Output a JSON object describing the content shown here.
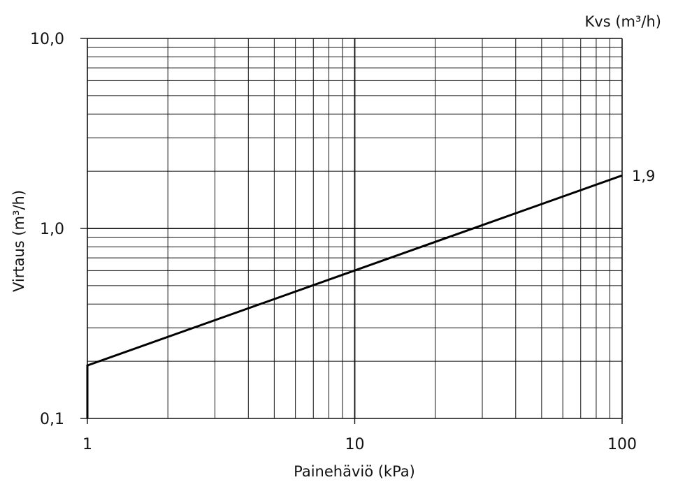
{
  "chart_data": {
    "type": "line",
    "title": "",
    "xlabel": "Painehäviö (kPa)",
    "ylabel": "Virtaus (m³/h)",
    "secondary_label": "Kvs (m³/h)",
    "x_scale": "log",
    "y_scale": "log",
    "xlim": [
      1,
      100
    ],
    "ylim": [
      0.1,
      10
    ],
    "x_ticks": [
      {
        "value": 1,
        "label": "1"
      },
      {
        "value": 10,
        "label": "10"
      },
      {
        "value": 100,
        "label": "100"
      }
    ],
    "y_ticks": [
      {
        "value": 0.1,
        "label": "0,1"
      },
      {
        "value": 1,
        "label": "1,0"
      },
      {
        "value": 10,
        "label": "10,0"
      }
    ],
    "grid": true,
    "series": [
      {
        "label": "1,9",
        "color": "#000000",
        "points": [
          {
            "x": 1,
            "y": 0.1
          },
          {
            "x": 1,
            "y": 0.19
          },
          {
            "x": 100,
            "y": 1.9
          }
        ]
      }
    ]
  }
}
